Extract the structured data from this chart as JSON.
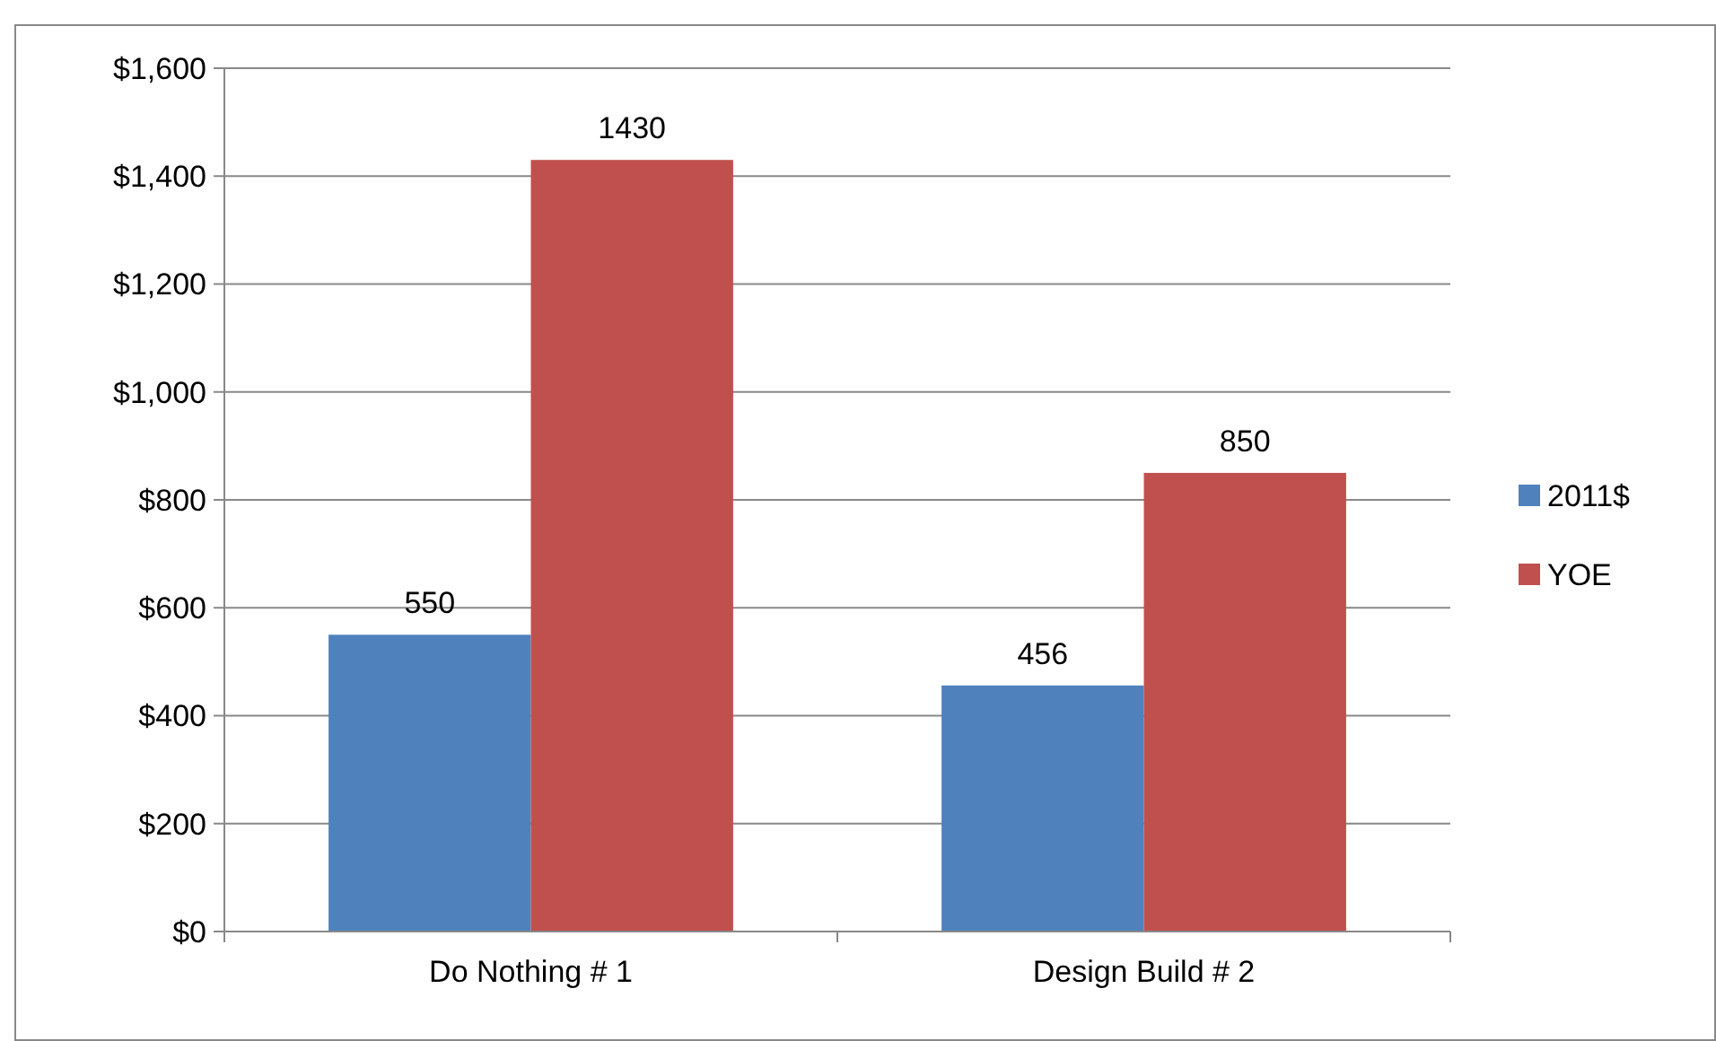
{
  "chart_data": {
    "type": "bar",
    "categories": [
      "Do Nothing # 1",
      "Design Build # 2"
    ],
    "series": [
      {
        "name": "2011$",
        "color": "#4f81bd",
        "values": [
          550,
          456
        ]
      },
      {
        "name": "YOE",
        "color": "#c0504d",
        "values": [
          1430,
          850
        ]
      }
    ],
    "ylim": [
      0,
      1600
    ],
    "yticks": [
      {
        "value": 0,
        "label": "$0"
      },
      {
        "value": 200,
        "label": "$200"
      },
      {
        "value": 400,
        "label": "$400"
      },
      {
        "value": 600,
        "label": "$600"
      },
      {
        "value": 800,
        "label": "$800"
      },
      {
        "value": 1000,
        "label": "$1,000"
      },
      {
        "value": 1200,
        "label": "$1,200"
      },
      {
        "value": 1400,
        "label": "$1,400"
      },
      {
        "value": 1600,
        "label": "$1,600"
      }
    ],
    "grid": "y",
    "legend": "right",
    "data_labels": true
  }
}
